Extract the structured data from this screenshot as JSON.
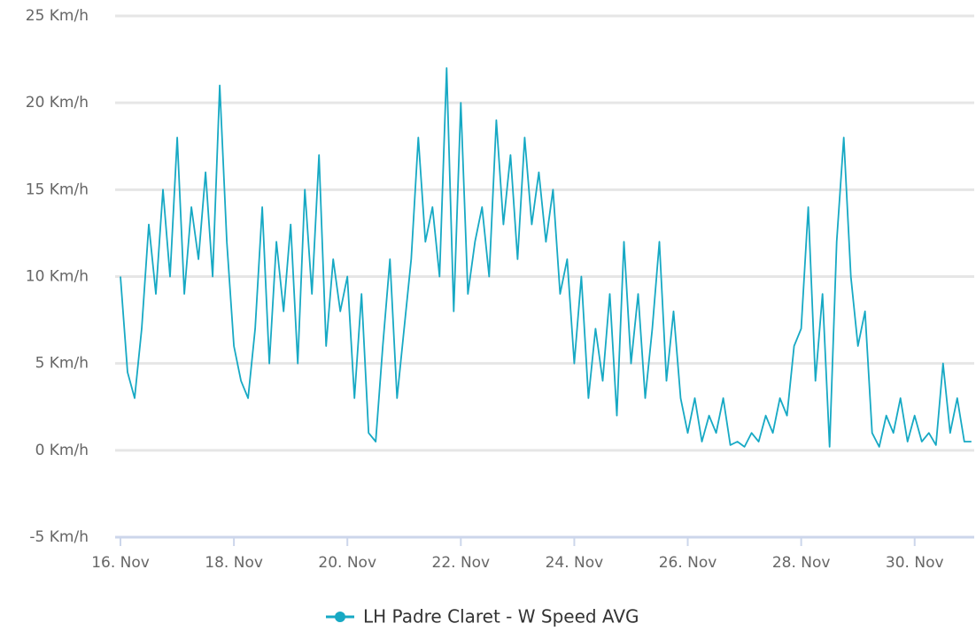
{
  "chart_data": {
    "type": "line",
    "x": [
      16,
      16.125,
      16.25,
      16.375,
      16.5,
      16.625,
      16.75,
      16.875,
      17,
      17.125,
      17.25,
      17.375,
      17.5,
      17.625,
      17.75,
      17.875,
      18,
      18.125,
      18.25,
      18.375,
      18.5,
      18.625,
      18.75,
      18.875,
      19,
      19.125,
      19.25,
      19.375,
      19.5,
      19.625,
      19.75,
      19.875,
      20,
      20.125,
      20.25,
      20.375,
      20.5,
      20.625,
      20.75,
      20.875,
      21,
      21.125,
      21.25,
      21.375,
      21.5,
      21.625,
      21.75,
      21.875,
      22,
      22.125,
      22.25,
      22.375,
      22.5,
      22.625,
      22.75,
      22.875,
      23,
      23.125,
      23.25,
      23.375,
      23.5,
      23.625,
      23.75,
      23.875,
      24,
      24.125,
      24.25,
      24.375,
      24.5,
      24.625,
      24.75,
      24.875,
      25,
      25.125,
      25.25,
      25.375,
      25.5,
      25.625,
      25.75,
      25.875,
      26,
      26.125,
      26.25,
      26.375,
      26.5,
      26.625,
      26.75,
      26.875,
      27,
      27.125,
      27.25,
      27.375,
      27.5,
      27.625,
      27.75,
      27.875,
      28,
      28.125,
      28.25,
      28.375,
      28.5,
      28.625,
      28.75,
      28.875,
      29,
      29.125,
      29.25,
      29.375,
      29.5,
      29.625,
      29.75,
      29.875,
      30,
      30.125,
      30.25,
      30.375,
      30.5,
      30.625,
      30.75,
      30.875,
      31
    ],
    "series": [
      {
        "name": "LH Padre Claret - W Speed AVG",
        "color": "#17a9c4",
        "values": [
          10,
          4.5,
          3,
          7,
          13,
          9,
          15,
          10,
          18,
          9,
          14,
          11,
          16,
          10,
          21,
          12,
          6,
          4,
          3,
          7,
          14,
          5,
          12,
          8,
          13,
          5,
          15,
          9,
          17,
          6,
          11,
          8,
          10,
          3,
          9,
          1,
          0.5,
          6,
          11,
          3,
          7,
          11,
          18,
          12,
          14,
          10,
          22,
          8,
          20,
          9,
          12,
          14,
          10,
          19,
          13,
          17,
          11,
          18,
          13,
          16,
          12,
          15,
          9,
          11,
          5,
          10,
          3,
          7,
          4,
          9,
          2,
          12,
          5,
          9,
          3,
          7,
          12,
          4,
          8,
          3,
          1,
          3,
          0.5,
          2,
          1,
          3,
          0.3,
          0.5,
          0.2,
          1,
          0.5,
          2,
          1,
          3,
          2,
          6,
          7,
          14,
          4,
          9,
          0.2,
          12,
          18,
          10,
          6,
          8,
          1,
          0.2,
          2,
          1,
          3,
          0.5,
          2,
          0.5,
          1,
          0.3,
          5,
          1,
          3,
          0.5,
          0.5
        ]
      }
    ],
    "xlim": [
      16,
      31.05
    ],
    "xticks": [
      {
        "value": 16,
        "label": "16. Nov"
      },
      {
        "value": 18,
        "label": "18. Nov"
      },
      {
        "value": 20,
        "label": "20. Nov"
      },
      {
        "value": 22,
        "label": "22. Nov"
      },
      {
        "value": 24,
        "label": "24. Nov"
      },
      {
        "value": 26,
        "label": "26. Nov"
      },
      {
        "value": 28,
        "label": "28. Nov"
      },
      {
        "value": 30,
        "label": "30. Nov"
      }
    ],
    "ylim": [
      -5,
      25
    ],
    "yticks": [
      {
        "value": -5,
        "label": "-5 Km/h"
      },
      {
        "value": 0,
        "label": "0 Km/h"
      },
      {
        "value": 5,
        "label": "5 Km/h"
      },
      {
        "value": 10,
        "label": "10 Km/h"
      },
      {
        "value": 15,
        "label": "15 Km/h"
      },
      {
        "value": 20,
        "label": "20 Km/h"
      },
      {
        "value": 25,
        "label": "25 Km/h"
      }
    ],
    "grid": true
  }
}
